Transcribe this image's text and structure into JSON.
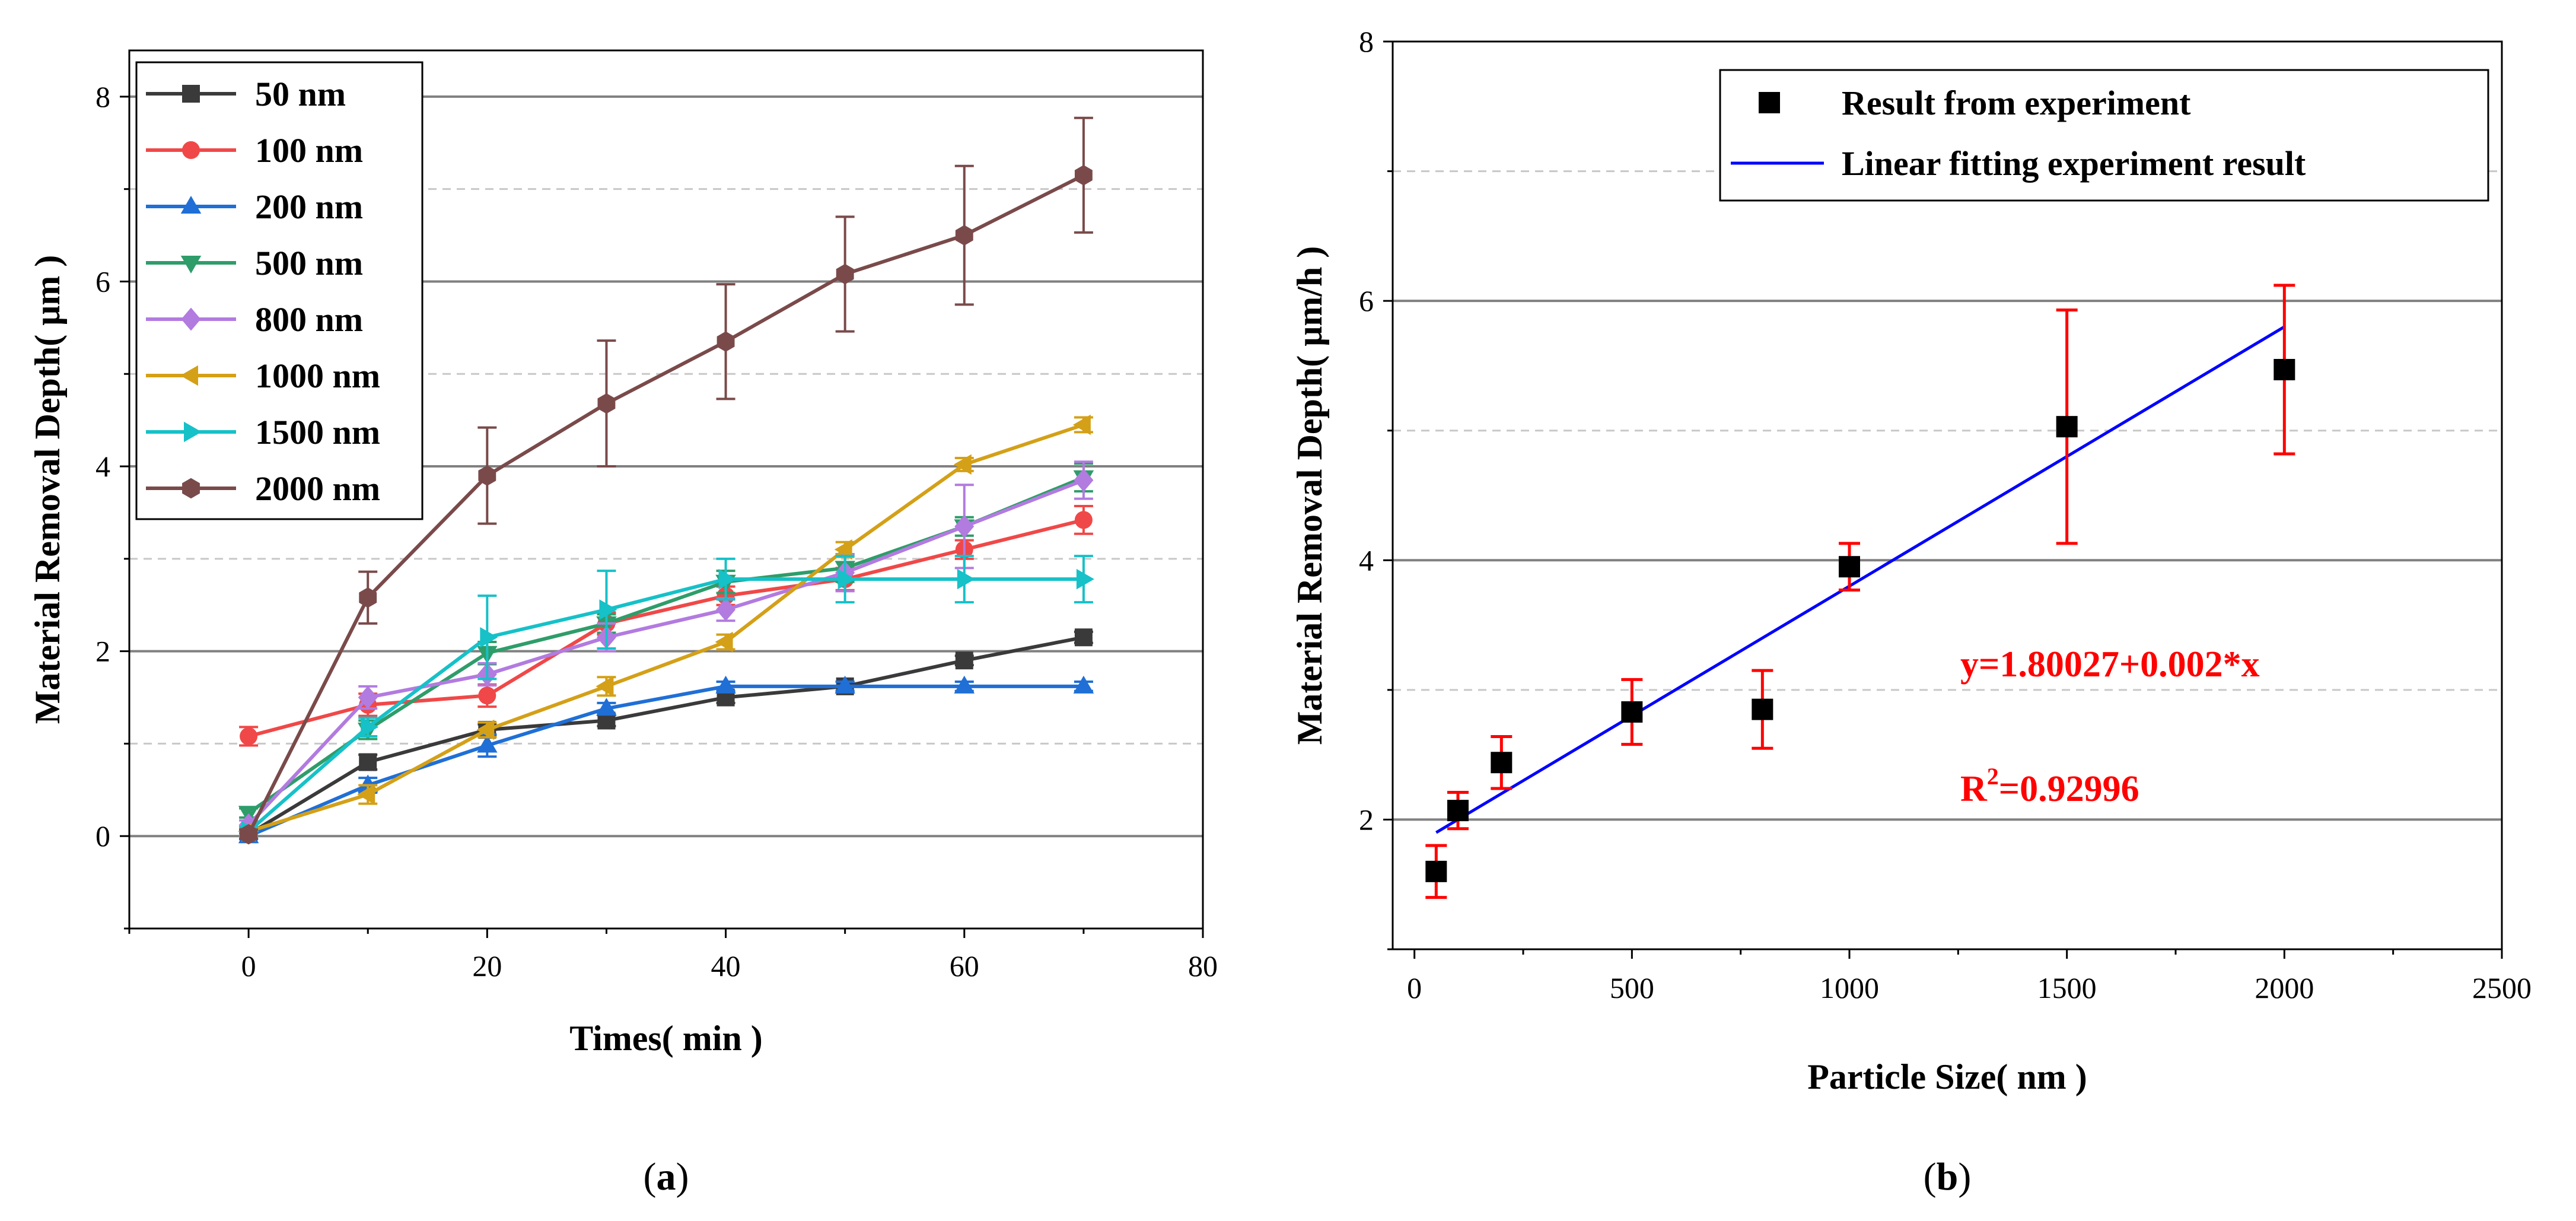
{
  "chart_data": [
    {
      "type": "line",
      "panel_label": "(a)",
      "panel_letter": "a",
      "xlabel": "Times( min )",
      "ylabel": "Material Removal Depth( μm )",
      "xlim": [
        -10,
        80
      ],
      "ylim": [
        -1,
        8.5
      ],
      "xticks": [
        0,
        20,
        40,
        60,
        80
      ],
      "yticks": [
        0,
        2,
        4,
        6,
        8
      ],
      "grid_major_y": [
        0,
        2,
        4,
        6,
        8
      ],
      "grid_minor_y": [
        1,
        3,
        5,
        7
      ],
      "legend_position": "top-left",
      "x": [
        0,
        10,
        20,
        30,
        40,
        50,
        60,
        70
      ],
      "series": [
        {
          "name": "50 nm",
          "color": "#3a3a3a",
          "marker": "square",
          "values": [
            0.02,
            0.8,
            1.15,
            1.25,
            1.5,
            1.62,
            1.9,
            2.15
          ],
          "errors": [
            0.05,
            0.08,
            0.06,
            0.06,
            0.06,
            0.05,
            0.05,
            0.06
          ]
        },
        {
          "name": "100 nm",
          "color": "#f04848",
          "marker": "circle",
          "values": [
            1.08,
            1.42,
            1.52,
            2.3,
            2.6,
            2.78,
            3.1,
            3.42
          ],
          "errors": [
            0.1,
            0.12,
            0.12,
            0.12,
            0.1,
            0.12,
            0.1,
            0.15
          ]
        },
        {
          "name": "200 nm",
          "color": "#1f6fd6",
          "marker": "triangle-up",
          "values": [
            0.0,
            0.55,
            0.98,
            1.38,
            1.62,
            1.62,
            1.62,
            1.62
          ],
          "errors": [
            0.03,
            0.08,
            0.12,
            0.06,
            0.05,
            0.05,
            0.05,
            0.05
          ]
        },
        {
          "name": "500 nm",
          "color": "#2e9d6a",
          "marker": "triangle-down",
          "values": [
            0.25,
            1.15,
            1.98,
            2.3,
            2.75,
            2.9,
            3.35,
            3.88
          ],
          "errors": [
            0.05,
            0.1,
            0.12,
            0.1,
            0.12,
            0.15,
            0.1,
            0.15
          ]
        },
        {
          "name": "800 nm",
          "color": "#b27be0",
          "marker": "diamond",
          "values": [
            0.12,
            1.5,
            1.75,
            2.15,
            2.45,
            2.85,
            3.35,
            3.85
          ],
          "errors": [
            0.05,
            0.12,
            0.12,
            0.15,
            0.12,
            0.2,
            0.45,
            0.2
          ]
        },
        {
          "name": "1000 nm",
          "color": "#d4a017",
          "marker": "triangle-left",
          "values": [
            0.05,
            0.45,
            1.15,
            1.62,
            2.1,
            3.1,
            4.02,
            4.45
          ],
          "errors": [
            0.05,
            0.1,
            0.08,
            0.1,
            0.08,
            0.08,
            0.07,
            0.08
          ]
        },
        {
          "name": "1500 nm",
          "color": "#16c1c8",
          "marker": "triangle-right",
          "values": [
            0.05,
            1.18,
            2.15,
            2.45,
            2.78,
            2.78,
            2.78,
            2.78
          ],
          "errors": [
            0.05,
            0.1,
            0.45,
            0.42,
            0.22,
            0.25,
            0.25,
            0.25
          ]
        },
        {
          "name": "2000 nm",
          "color": "#7a4a4a",
          "marker": "hexagon",
          "values": [
            0.02,
            2.58,
            3.9,
            4.68,
            5.35,
            6.08,
            6.5,
            7.15
          ],
          "errors": [
            0.05,
            0.28,
            0.52,
            0.68,
            0.62,
            0.62,
            0.75,
            0.62
          ]
        }
      ]
    },
    {
      "type": "scatter",
      "panel_label": "(b)",
      "panel_letter": "b",
      "xlabel": "Particle Size( nm )",
      "ylabel": "Material Removal Depth( μm/h )",
      "xlim": [
        -50,
        2500
      ],
      "ylim": [
        1,
        8
      ],
      "xticks": [
        0,
        500,
        1000,
        1500,
        2000,
        2500
      ],
      "yticks": [
        2,
        4,
        6,
        8
      ],
      "grid_major_y": [
        2,
        4,
        6
      ],
      "grid_minor_y": [
        3,
        5,
        7
      ],
      "legend_position": "top-right",
      "points": {
        "name": "Result from experiment",
        "color": "#000000",
        "x": [
          50,
          100,
          200,
          500,
          800,
          1000,
          1500,
          2000
        ],
        "y": [
          1.6,
          2.07,
          2.44,
          2.83,
          2.85,
          3.95,
          5.03,
          5.47
        ],
        "errors": [
          0.2,
          0.14,
          0.2,
          0.25,
          0.3,
          0.18,
          0.9,
          0.65
        ],
        "error_color": "#ff0000"
      },
      "fit": {
        "name": "Linear fitting experiment result",
        "color": "#0000ff",
        "intercept": 1.80027,
        "slope": 0.002,
        "x_range": [
          50,
          2000
        ]
      },
      "annotations": {
        "equation": "y=1.80027+0.002*x",
        "r2_prefix": "R",
        "r2_sup": "2",
        "r2_value": "=0.92996"
      }
    }
  ]
}
